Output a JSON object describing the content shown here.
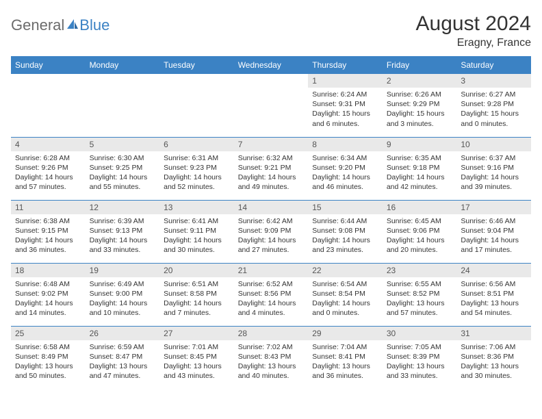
{
  "logo": {
    "word1": "General",
    "word2": "Blue"
  },
  "title": "August 2024",
  "location": "Eragny, France",
  "colors": {
    "header_bg": "#3b82c4",
    "header_text": "#ffffff",
    "daynum_bg": "#e9e9e9",
    "cell_border": "#3b82c4",
    "logo_gray": "#6b6b6b",
    "logo_blue": "#3b82c4"
  },
  "weekdays": [
    "Sunday",
    "Monday",
    "Tuesday",
    "Wednesday",
    "Thursday",
    "Friday",
    "Saturday"
  ],
  "first_weekday_index": 4,
  "days": [
    {
      "n": 1,
      "sunrise": "6:24 AM",
      "sunset": "9:31 PM",
      "daylight": "15 hours and 6 minutes."
    },
    {
      "n": 2,
      "sunrise": "6:26 AM",
      "sunset": "9:29 PM",
      "daylight": "15 hours and 3 minutes."
    },
    {
      "n": 3,
      "sunrise": "6:27 AM",
      "sunset": "9:28 PM",
      "daylight": "15 hours and 0 minutes."
    },
    {
      "n": 4,
      "sunrise": "6:28 AM",
      "sunset": "9:26 PM",
      "daylight": "14 hours and 57 minutes."
    },
    {
      "n": 5,
      "sunrise": "6:30 AM",
      "sunset": "9:25 PM",
      "daylight": "14 hours and 55 minutes."
    },
    {
      "n": 6,
      "sunrise": "6:31 AM",
      "sunset": "9:23 PM",
      "daylight": "14 hours and 52 minutes."
    },
    {
      "n": 7,
      "sunrise": "6:32 AM",
      "sunset": "9:21 PM",
      "daylight": "14 hours and 49 minutes."
    },
    {
      "n": 8,
      "sunrise": "6:34 AM",
      "sunset": "9:20 PM",
      "daylight": "14 hours and 46 minutes."
    },
    {
      "n": 9,
      "sunrise": "6:35 AM",
      "sunset": "9:18 PM",
      "daylight": "14 hours and 42 minutes."
    },
    {
      "n": 10,
      "sunrise": "6:37 AM",
      "sunset": "9:16 PM",
      "daylight": "14 hours and 39 minutes."
    },
    {
      "n": 11,
      "sunrise": "6:38 AM",
      "sunset": "9:15 PM",
      "daylight": "14 hours and 36 minutes."
    },
    {
      "n": 12,
      "sunrise": "6:39 AM",
      "sunset": "9:13 PM",
      "daylight": "14 hours and 33 minutes."
    },
    {
      "n": 13,
      "sunrise": "6:41 AM",
      "sunset": "9:11 PM",
      "daylight": "14 hours and 30 minutes."
    },
    {
      "n": 14,
      "sunrise": "6:42 AM",
      "sunset": "9:09 PM",
      "daylight": "14 hours and 27 minutes."
    },
    {
      "n": 15,
      "sunrise": "6:44 AM",
      "sunset": "9:08 PM",
      "daylight": "14 hours and 23 minutes."
    },
    {
      "n": 16,
      "sunrise": "6:45 AM",
      "sunset": "9:06 PM",
      "daylight": "14 hours and 20 minutes."
    },
    {
      "n": 17,
      "sunrise": "6:46 AM",
      "sunset": "9:04 PM",
      "daylight": "14 hours and 17 minutes."
    },
    {
      "n": 18,
      "sunrise": "6:48 AM",
      "sunset": "9:02 PM",
      "daylight": "14 hours and 14 minutes."
    },
    {
      "n": 19,
      "sunrise": "6:49 AM",
      "sunset": "9:00 PM",
      "daylight": "14 hours and 10 minutes."
    },
    {
      "n": 20,
      "sunrise": "6:51 AM",
      "sunset": "8:58 PM",
      "daylight": "14 hours and 7 minutes."
    },
    {
      "n": 21,
      "sunrise": "6:52 AM",
      "sunset": "8:56 PM",
      "daylight": "14 hours and 4 minutes."
    },
    {
      "n": 22,
      "sunrise": "6:54 AM",
      "sunset": "8:54 PM",
      "daylight": "14 hours and 0 minutes."
    },
    {
      "n": 23,
      "sunrise": "6:55 AM",
      "sunset": "8:52 PM",
      "daylight": "13 hours and 57 minutes."
    },
    {
      "n": 24,
      "sunrise": "6:56 AM",
      "sunset": "8:51 PM",
      "daylight": "13 hours and 54 minutes."
    },
    {
      "n": 25,
      "sunrise": "6:58 AM",
      "sunset": "8:49 PM",
      "daylight": "13 hours and 50 minutes."
    },
    {
      "n": 26,
      "sunrise": "6:59 AM",
      "sunset": "8:47 PM",
      "daylight": "13 hours and 47 minutes."
    },
    {
      "n": 27,
      "sunrise": "7:01 AM",
      "sunset": "8:45 PM",
      "daylight": "13 hours and 43 minutes."
    },
    {
      "n": 28,
      "sunrise": "7:02 AM",
      "sunset": "8:43 PM",
      "daylight": "13 hours and 40 minutes."
    },
    {
      "n": 29,
      "sunrise": "7:04 AM",
      "sunset": "8:41 PM",
      "daylight": "13 hours and 36 minutes."
    },
    {
      "n": 30,
      "sunrise": "7:05 AM",
      "sunset": "8:39 PM",
      "daylight": "13 hours and 33 minutes."
    },
    {
      "n": 31,
      "sunrise": "7:06 AM",
      "sunset": "8:36 PM",
      "daylight": "13 hours and 30 minutes."
    }
  ],
  "labels": {
    "sunrise": "Sunrise:",
    "sunset": "Sunset:",
    "daylight": "Daylight:"
  }
}
